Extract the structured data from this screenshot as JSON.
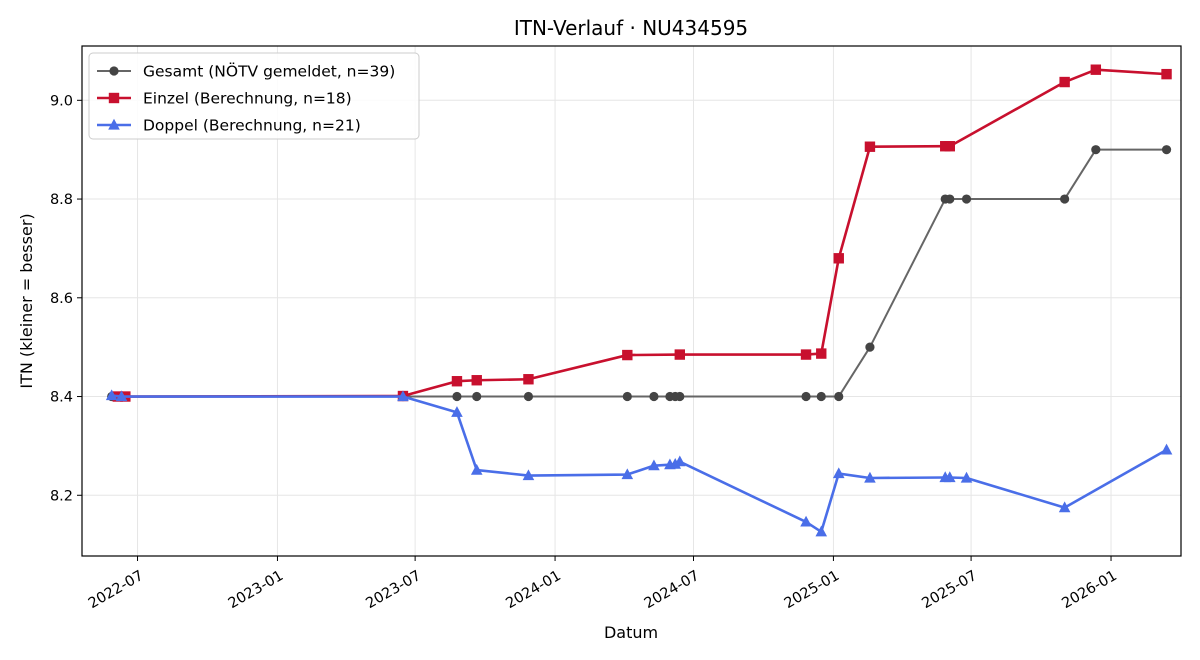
{
  "chart_data": {
    "type": "line",
    "title": "ITN-Verlauf · NU434595",
    "xlabel": "Datum",
    "ylabel": "ITN  (kleiner = besser)",
    "x_axis_type": "date",
    "xlim": [
      "2022-04-19",
      "2026-04-03"
    ],
    "ylim": [
      8.077,
      9.11
    ],
    "x_ticks": [
      "2022-07-01",
      "2023-01-01",
      "2023-07-01",
      "2024-01-01",
      "2024-07-01",
      "2025-01-01",
      "2025-07-01",
      "2026-01-01"
    ],
    "x_tick_labels": [
      "2022-07",
      "2023-01",
      "2023-07",
      "2024-01",
      "2024-07",
      "2025-01",
      "2025-07",
      "2026-01"
    ],
    "y_ticks": [
      8.2,
      8.4,
      8.6,
      8.8,
      9.0
    ],
    "y_tick_labels": [
      "8.2",
      "8.4",
      "8.6",
      "8.8",
      "9.0"
    ],
    "grid": true,
    "legend_position": "top-left",
    "series": [
      {
        "name": "Gesamt (NÖTV gemeldet, n=39)",
        "color": "#666666",
        "marker": "circle",
        "points": [
          [
            "2022-05-28",
            8.4
          ],
          [
            "2022-06-10",
            8.4
          ],
          [
            "2023-06-15",
            8.4
          ],
          [
            "2023-08-25",
            8.4
          ],
          [
            "2023-09-20",
            8.4
          ],
          [
            "2023-11-27",
            8.4
          ],
          [
            "2024-04-05",
            8.4
          ],
          [
            "2024-05-10",
            8.4
          ],
          [
            "2024-05-31",
            8.4
          ],
          [
            "2024-06-07",
            8.4
          ],
          [
            "2024-06-13",
            8.4
          ],
          [
            "2024-11-26",
            8.4
          ],
          [
            "2024-12-16",
            8.4
          ],
          [
            "2025-01-08",
            8.4
          ],
          [
            "2025-02-18",
            8.5
          ],
          [
            "2025-05-28",
            8.8
          ],
          [
            "2025-06-03",
            8.8
          ],
          [
            "2025-06-25",
            8.8
          ],
          [
            "2025-11-01",
            8.8
          ],
          [
            "2025-12-12",
            8.9
          ],
          [
            "2026-03-15",
            8.9
          ]
        ]
      },
      {
        "name": "Einzel (Berechnung, n=18)",
        "color": "#c8102e",
        "marker": "square",
        "points": [
          [
            "2022-06-05",
            8.4
          ],
          [
            "2022-06-15",
            8.4
          ],
          [
            "2023-06-15",
            8.401
          ],
          [
            "2023-08-25",
            8.431
          ],
          [
            "2023-09-20",
            8.433
          ],
          [
            "2023-11-27",
            8.435
          ],
          [
            "2024-04-05",
            8.484
          ],
          [
            "2024-06-13",
            8.485
          ],
          [
            "2024-11-26",
            8.485
          ],
          [
            "2024-12-16",
            8.487
          ],
          [
            "2025-01-08",
            8.68
          ],
          [
            "2025-02-18",
            8.906
          ],
          [
            "2025-05-28",
            8.907
          ],
          [
            "2025-06-03",
            8.907
          ],
          [
            "2025-11-01",
            9.037
          ],
          [
            "2025-12-12",
            9.062
          ],
          [
            "2026-03-15",
            9.053
          ]
        ]
      },
      {
        "name": "Doppel (Berechnung, n=21)",
        "color": "#4a6ee8",
        "marker": "triangle",
        "points": [
          [
            "2022-05-28",
            8.402
          ],
          [
            "2022-06-10",
            8.4
          ],
          [
            "2023-06-15",
            8.4
          ],
          [
            "2023-08-25",
            8.368
          ],
          [
            "2023-09-20",
            8.251
          ],
          [
            "2023-11-27",
            8.24
          ],
          [
            "2024-04-05",
            8.242
          ],
          [
            "2024-05-10",
            8.26
          ],
          [
            "2024-05-31",
            8.262
          ],
          [
            "2024-06-07",
            8.263
          ],
          [
            "2024-06-13",
            8.268
          ],
          [
            "2024-11-26",
            8.146
          ],
          [
            "2024-12-16",
            8.126
          ],
          [
            "2025-01-08",
            8.244
          ],
          [
            "2025-02-18",
            8.235
          ],
          [
            "2025-05-28",
            8.236
          ],
          [
            "2025-06-03",
            8.236
          ],
          [
            "2025-06-25",
            8.235
          ],
          [
            "2025-11-01",
            8.175
          ],
          [
            "2026-03-15",
            8.292
          ]
        ]
      }
    ]
  }
}
